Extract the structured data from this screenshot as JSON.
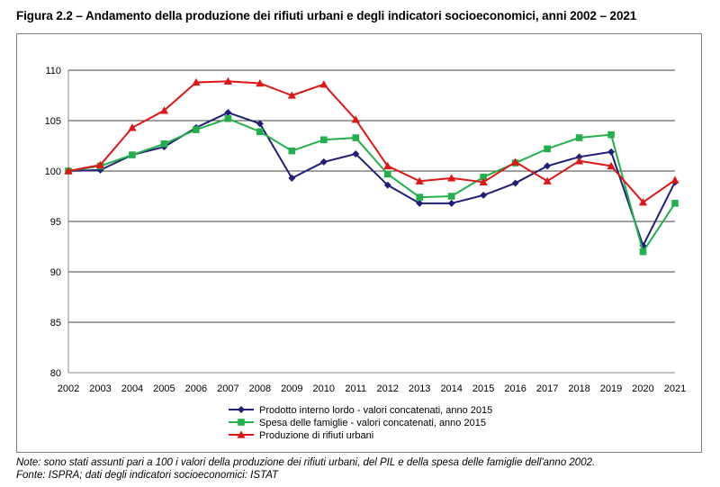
{
  "figure_title": "Figura 2.2 – Andamento della produzione dei rifiuti urbani e degli indicatori socioeconomici, anni 2002 – 2021",
  "note": "Note: sono stati assunti pari a 100 i valori della produzione dei rifiuti urbani, del PIL e della spesa delle famiglie dell'anno 2002.",
  "source": "Fonte: ISPRA; dati degli indicatori socioeconomici: ISTAT",
  "chart_data": {
    "type": "line",
    "title": "",
    "xlabel": "",
    "ylabel": "",
    "categories": [
      "2002",
      "2003",
      "2004",
      "2005",
      "2006",
      "2007",
      "2008",
      "2009",
      "2010",
      "2011",
      "2012",
      "2013",
      "2014",
      "2015",
      "2016",
      "2017",
      "2018",
      "2019",
      "2020",
      "2021"
    ],
    "ylim": [
      80,
      110
    ],
    "yticks": [
      80,
      85,
      90,
      95,
      100,
      105,
      110
    ],
    "grid": "horizontal",
    "legend_position": "bottom",
    "series": [
      {
        "name": "Prodotto interno lordo - valori concatenati, anno 2015",
        "color": "#1f1f7a",
        "marker": "diamond",
        "values": [
          100,
          100.1,
          101.6,
          102.4,
          104.3,
          105.8,
          104.7,
          99.3,
          100.9,
          101.7,
          98.6,
          96.8,
          96.8,
          97.6,
          98.8,
          100.5,
          101.4,
          101.9,
          92.6,
          98.9
        ]
      },
      {
        "name": "Spesa delle famiglie - valori concatenati, anno 2015",
        "color": "#22b04a",
        "marker": "square",
        "values": [
          100,
          100.5,
          101.6,
          102.7,
          104.1,
          105.2,
          103.9,
          102.0,
          103.1,
          103.3,
          99.7,
          97.4,
          97.5,
          99.4,
          100.8,
          102.2,
          103.3,
          103.6,
          92.0,
          96.8
        ]
      },
      {
        "name": "Produzione di rifiuti urbani",
        "color": "#e01515",
        "marker": "triangle",
        "values": [
          100,
          100.6,
          104.3,
          106.0,
          108.8,
          108.9,
          108.7,
          107.5,
          108.6,
          105.1,
          100.5,
          99.0,
          99.3,
          98.9,
          100.9,
          99.0,
          101.0,
          100.5,
          96.9,
          99.1
        ]
      }
    ]
  }
}
